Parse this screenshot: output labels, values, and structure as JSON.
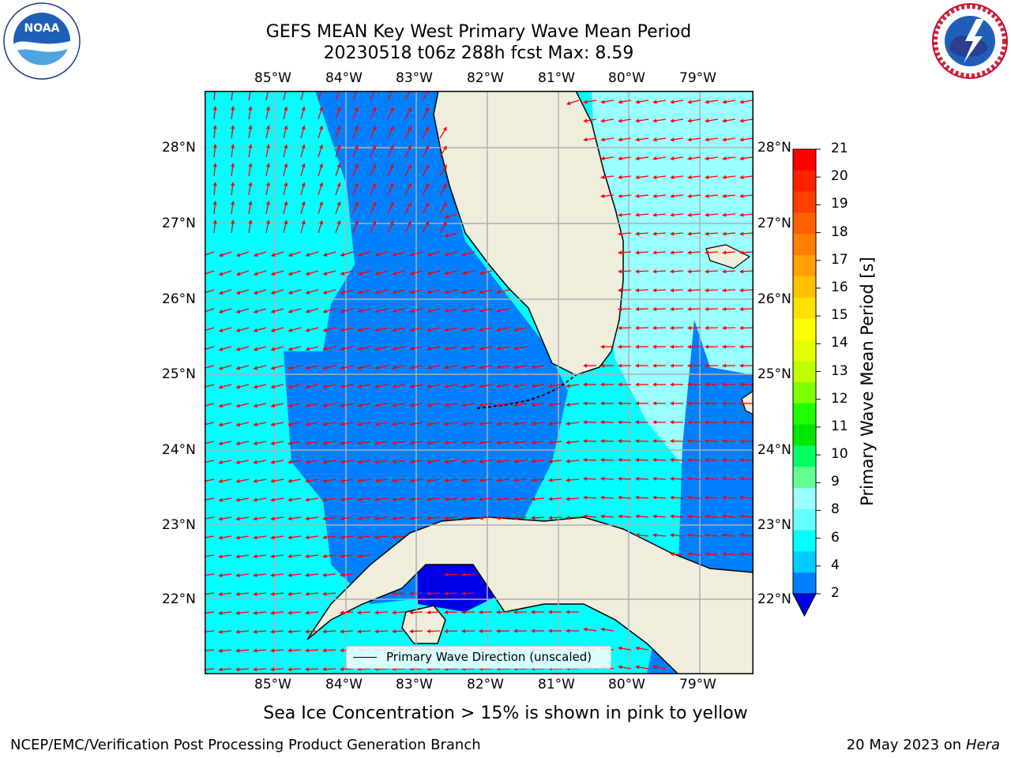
{
  "header": {
    "title_line1": "GEFS MEAN Key West Primary Wave Mean Period",
    "title_line2": "20230518 t06z 288h fcst   Max: 8.59"
  },
  "logos": {
    "left": {
      "text": "NOAA",
      "ring_text": "NATIONAL OCEANIC AND ATMOSPHERIC ADMINISTRATION · U.S. DEPARTMENT OF COMMERCE"
    },
    "right": {
      "ring_text": "NATIONAL WEATHER SERVICE"
    }
  },
  "map": {
    "lon_labels": [
      "85°W",
      "84°W",
      "83°W",
      "82°W",
      "81°W",
      "80°W",
      "79°W"
    ],
    "lat_labels": [
      "28°N",
      "27°N",
      "26°N",
      "25°N",
      "24°N",
      "23°N",
      "22°N"
    ],
    "legend_label": "Primary Wave Direction (unscaled)",
    "colors": {
      "ocean_light_cyan": "#00ffff",
      "ocean_pale": "#99ffff",
      "ocean_mid_blue": "#0080ff",
      "ocean_deep_blue": "#0000e6",
      "land": "#efeddc",
      "arrows": "#ff0000",
      "grid": "#b0b0b0"
    }
  },
  "colorbar": {
    "label": "Primary Wave Mean Period [s]",
    "ticks": [
      "21",
      "20",
      "19",
      "18",
      "17",
      "16",
      "15",
      "14",
      "13",
      "12",
      "11",
      "10",
      "9",
      "8",
      "6",
      "4",
      "2"
    ],
    "colors": [
      "#ff0000",
      "#ff2000",
      "#ff4000",
      "#ff6000",
      "#ff8000",
      "#ffa000",
      "#ffc000",
      "#ffe000",
      "#ffff00",
      "#e6ff00",
      "#c0ff00",
      "#80ff00",
      "#20ff00",
      "#00e600",
      "#00ff60",
      "#60ff90",
      "#99ffff",
      "#66ffff",
      "#00ffff",
      "#00ccff",
      "#0080ff"
    ],
    "extend_color": "#0000e6"
  },
  "footer": {
    "sea_ice_note": "Sea Ice Concentration > 15% is shown in pink to yellow",
    "branch": "NCEP/EMC/Verification Post Processing Product Generation Branch",
    "date": "20 May 2023 on",
    "machine": "Hera"
  }
}
